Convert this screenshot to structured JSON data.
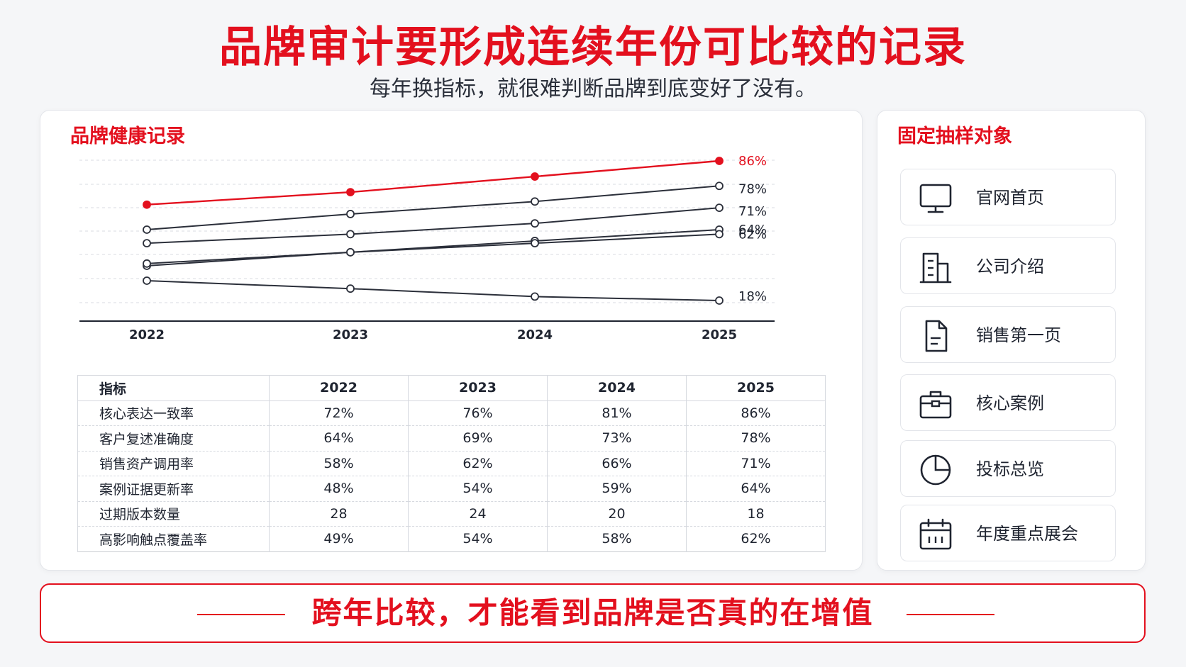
{
  "header": {
    "title": "品牌审计要形成连续年份可比较的记录",
    "subtitle": "每年换指标，就很难判断品牌到底变好了没有。"
  },
  "chart_panel": {
    "title": "品牌健康记录"
  },
  "chart_data": {
    "type": "line",
    "x": [
      "2022",
      "2023",
      "2024",
      "2025"
    ],
    "end_labels": [
      "86%",
      "78%",
      "71%",
      "64%",
      "18%",
      "62%"
    ],
    "series": [
      {
        "values": [
          72,
          76,
          81,
          86
        ],
        "color": "#e3101e"
      },
      {
        "values": [
          64,
          69,
          73,
          78
        ],
        "color": "#2b2f3a"
      },
      {
        "values": [
          58,
          62,
          66,
          71
        ],
        "color": "#2b2f3a"
      },
      {
        "values": [
          48,
          54,
          59,
          64
        ],
        "color": "#2b2f3a"
      },
      {
        "values": [
          28,
          24,
          20,
          18
        ],
        "color": "#2b2f3a"
      },
      {
        "values": [
          49,
          54,
          58,
          62
        ],
        "color": "#2b2f3a"
      }
    ],
    "grid": true,
    "legend": "none"
  },
  "table": {
    "headers": [
      "指标",
      "2022",
      "2023",
      "2024",
      "2025"
    ],
    "rows": [
      [
        "核心表达一致率",
        "72%",
        "76%",
        "81%",
        "86%"
      ],
      [
        "客户复述准确度",
        "64%",
        "69%",
        "73%",
        "78%"
      ],
      [
        "销售资产调用率",
        "58%",
        "62%",
        "66%",
        "71%"
      ],
      [
        "案例证据更新率",
        "48%",
        "54%",
        "59%",
        "64%"
      ],
      [
        "过期版本数量",
        "28",
        "24",
        "20",
        "18"
      ],
      [
        "高影响触点覆盖率",
        "49%",
        "54%",
        "58%",
        "62%"
      ]
    ]
  },
  "samples": {
    "title": "固定抽样对象",
    "items": [
      {
        "label": "官网首页",
        "icon": "monitor-icon"
      },
      {
        "label": "公司介绍",
        "icon": "building-icon"
      },
      {
        "label": "销售第一页",
        "icon": "document-icon"
      },
      {
        "label": "核心案例",
        "icon": "briefcase-icon"
      },
      {
        "label": "投标总览",
        "icon": "pie-chart-icon"
      },
      {
        "label": "年度重点展会",
        "icon": "calendar-icon"
      }
    ]
  },
  "banner": {
    "text": "跨年比较，才能看到品牌是否真的在增值"
  },
  "colors": {
    "accent": "#e3101e",
    "dark_line": "#2b2f3a"
  }
}
